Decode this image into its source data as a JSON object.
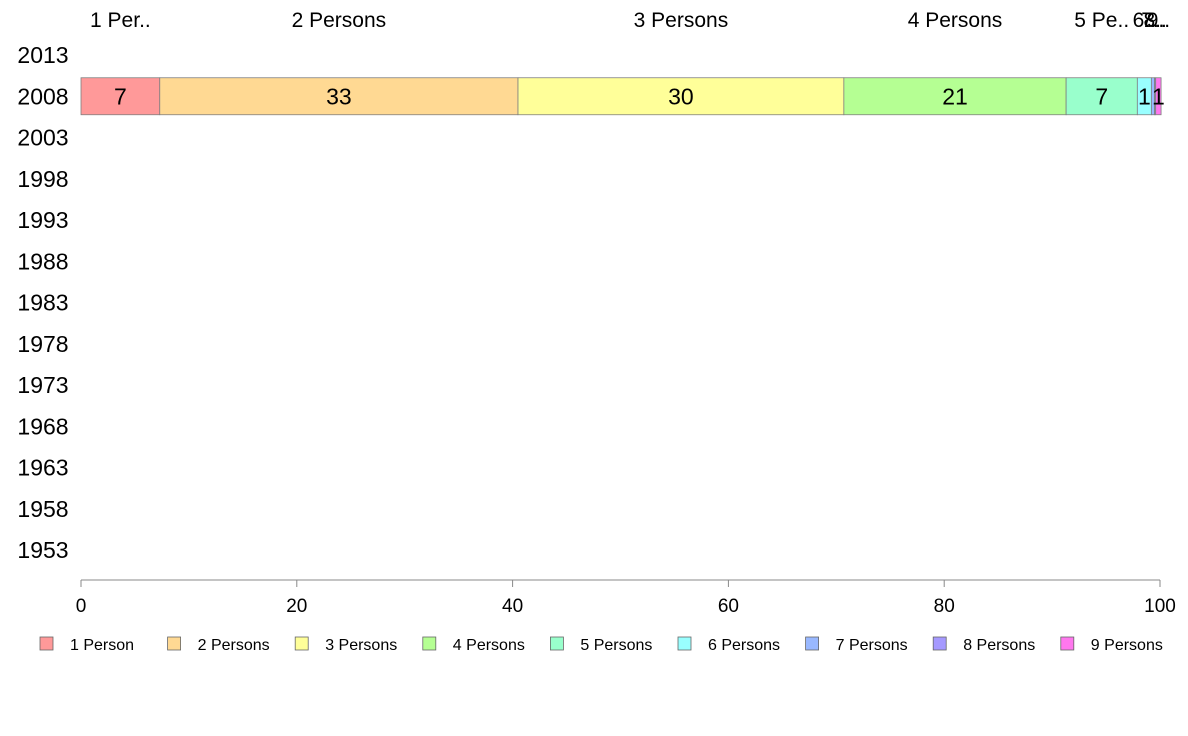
{
  "chart_data": {
    "type": "bar",
    "orientation": "horizontal",
    "stacked": true,
    "y_categories": [
      "2013",
      "2008",
      "2003",
      "1998",
      "1993",
      "1988",
      "1983",
      "1978",
      "1973",
      "1968",
      "1963",
      "1958",
      "1953"
    ],
    "xlim": [
      0,
      100
    ],
    "x_ticks": [
      0,
      20,
      40,
      60,
      80,
      100
    ],
    "grid": false,
    "legend_position": "bottom",
    "top_labels": [
      "1 Per..",
      "2 Persons",
      "3 Persons",
      "4 Persons",
      "5 Pe..",
      "6..",
      "7..",
      "8..",
      "9.."
    ],
    "series": [
      {
        "name": "1 Person",
        "color": "#ff9999",
        "values": {
          "2008": 7.3
        },
        "label": "7"
      },
      {
        "name": "2 Persons",
        "color": "#ffd993",
        "values": {
          "2008": 33.2
        },
        "label": "33"
      },
      {
        "name": "3 Persons",
        "color": "#ffff99",
        "values": {
          "2008": 30.2
        },
        "label": "30"
      },
      {
        "name": "4 Persons",
        "color": "#b5ff93",
        "values": {
          "2008": 20.6
        },
        "label": "21"
      },
      {
        "name": "5 Persons",
        "color": "#99ffcc",
        "values": {
          "2008": 6.6
        },
        "label": "7"
      },
      {
        "name": "6 Persons",
        "color": "#99ffff",
        "values": {
          "2008": 1.3
        },
        "label": "1"
      },
      {
        "name": "7 Persons",
        "color": "#99b8ff",
        "values": {
          "2008": 0.3
        },
        "label": ""
      },
      {
        "name": "8 Persons",
        "color": "#a599ff",
        "values": {
          "2008": 0.1
        },
        "label": ""
      },
      {
        "name": "9 Persons",
        "color": "#ff77ee",
        "values": {
          "2008": 0.5
        },
        "label": "1"
      }
    ]
  }
}
